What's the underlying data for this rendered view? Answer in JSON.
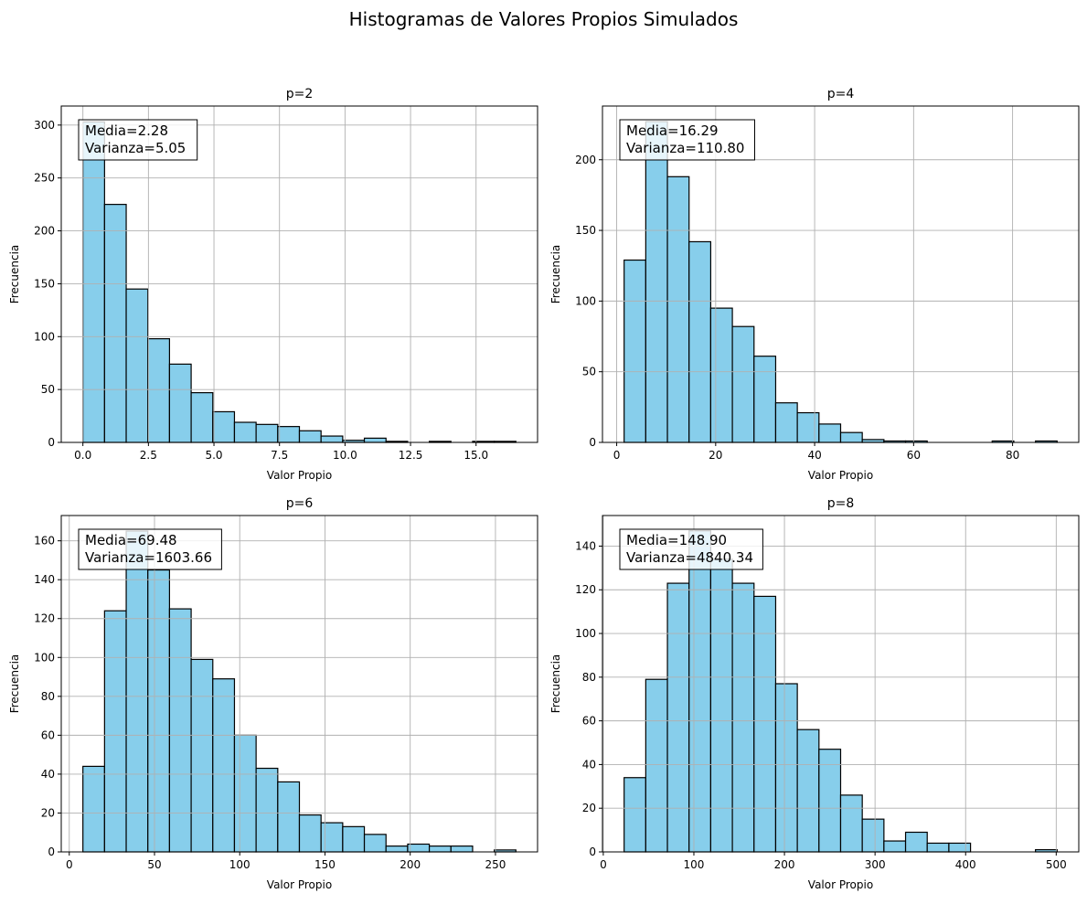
{
  "figure": {
    "suptitle": "Histogramas de Valores Propios Simulados"
  },
  "style": {
    "bar_fill": "#87ceeb",
    "bar_edge": "#000000",
    "grid_color": "#b0b0b0",
    "annotation_box_edge": "#000000"
  },
  "chart_data": [
    {
      "type": "bar",
      "title": "p=2",
      "xlabel": "Valor Propio",
      "ylabel": "Frecuencia",
      "grid": true,
      "bin_edges": [
        0.0,
        0.826,
        1.652,
        2.478,
        3.304,
        4.13,
        4.956,
        5.782,
        6.608,
        7.434,
        8.26,
        9.086,
        9.912,
        10.738,
        11.564,
        12.39,
        13.216,
        14.042,
        14.868,
        15.694,
        16.52
      ],
      "values": [
        303,
        225,
        145,
        98,
        74,
        47,
        29,
        19,
        17,
        15,
        11,
        6,
        2,
        4,
        1,
        0,
        1,
        0,
        1,
        1
      ],
      "xlim": [
        -0.826,
        17.346
      ],
      "ylim": [
        0,
        318
      ],
      "xticks": [
        0,
        2.5,
        5,
        7.5,
        10,
        12.5,
        15
      ],
      "xtick_labels": [
        "0.0",
        "2.5",
        "5.0",
        "7.5",
        "10.0",
        "12.5",
        "15.0"
      ],
      "yticks": [
        0,
        50,
        100,
        150,
        200,
        250,
        300
      ],
      "ytick_labels": [
        "0",
        "50",
        "100",
        "150",
        "200",
        "250",
        "300"
      ],
      "annotation": [
        "Media=2.28",
        "Varianza=5.05"
      ]
    },
    {
      "type": "bar",
      "title": "p=4",
      "xlabel": "Valor Propio",
      "ylabel": "Frecuencia",
      "grid": true,
      "bin_edges": [
        1.5,
        5.875,
        10.25,
        14.625,
        19.0,
        23.375,
        27.75,
        32.125,
        36.5,
        40.875,
        45.25,
        49.625,
        54.0,
        58.375,
        62.75,
        67.125,
        71.5,
        75.875,
        80.25,
        84.625,
        89.0
      ],
      "values": [
        129,
        227,
        188,
        142,
        95,
        82,
        61,
        28,
        21,
        13,
        7,
        2,
        1,
        1,
        0,
        0,
        0,
        1,
        0,
        1
      ],
      "xlim": [
        -2.875,
        93.375
      ],
      "ylim": [
        0,
        238
      ],
      "xticks": [
        0,
        20,
        40,
        60,
        80
      ],
      "xtick_labels": [
        "0",
        "20",
        "40",
        "60",
        "80"
      ],
      "yticks": [
        0,
        50,
        100,
        150,
        200
      ],
      "ytick_labels": [
        "0",
        "50",
        "100",
        "150",
        "200"
      ],
      "annotation": [
        "Media=16.29",
        "Varianza=110.80"
      ]
    },
    {
      "type": "bar",
      "title": "p=6",
      "xlabel": "Valor Propio",
      "ylabel": "Frecuencia",
      "grid": true,
      "bin_edges": [
        8.0,
        20.7,
        33.4,
        46.1,
        58.8,
        71.5,
        84.2,
        96.9,
        109.6,
        122.3,
        135.0,
        147.7,
        160.4,
        173.1,
        185.8,
        198.5,
        211.2,
        223.9,
        236.6,
        249.3,
        262.0
      ],
      "values": [
        44,
        124,
        165,
        145,
        125,
        99,
        89,
        60,
        43,
        36,
        19,
        15,
        13,
        9,
        3,
        4,
        3,
        3,
        0,
        1
      ],
      "xlim": [
        -4.7,
        274.7
      ],
      "ylim": [
        0,
        173
      ],
      "xticks": [
        0,
        50,
        100,
        150,
        200,
        250
      ],
      "xtick_labels": [
        "0",
        "50",
        "100",
        "150",
        "200",
        "250"
      ],
      "yticks": [
        0,
        20,
        40,
        60,
        80,
        100,
        120,
        140,
        160
      ],
      "ytick_labels": [
        "0",
        "20",
        "40",
        "60",
        "80",
        "100",
        "120",
        "140",
        "160"
      ],
      "annotation": [
        "Media=69.48",
        "Varianza=1603.66"
      ]
    },
    {
      "type": "bar",
      "title": "p=8",
      "xlabel": "Valor Propio",
      "ylabel": "Frecuencia",
      "grid": true,
      "bin_edges": [
        23.0,
        46.9,
        70.8,
        94.7,
        118.6,
        142.5,
        166.4,
        190.3,
        214.2,
        238.1,
        262.0,
        285.9,
        309.8,
        333.7,
        357.6,
        381.5,
        405.4,
        429.3,
        453.2,
        477.1,
        501.0
      ],
      "values": [
        34,
        79,
        123,
        147,
        134,
        123,
        117,
        77,
        56,
        47,
        26,
        15,
        5,
        9,
        4,
        4,
        0,
        0,
        0,
        1
      ],
      "xlim": [
        -0.9,
        524.9
      ],
      "ylim": [
        0,
        154
      ],
      "xticks": [
        0,
        100,
        200,
        300,
        400,
        500
      ],
      "xtick_labels": [
        "0",
        "100",
        "200",
        "300",
        "400",
        "500"
      ],
      "yticks": [
        0,
        20,
        40,
        60,
        80,
        100,
        120,
        140
      ],
      "ytick_labels": [
        "0",
        "20",
        "40",
        "60",
        "80",
        "100",
        "120",
        "140"
      ],
      "annotation": [
        "Media=148.90",
        "Varianza=4840.34"
      ]
    }
  ]
}
